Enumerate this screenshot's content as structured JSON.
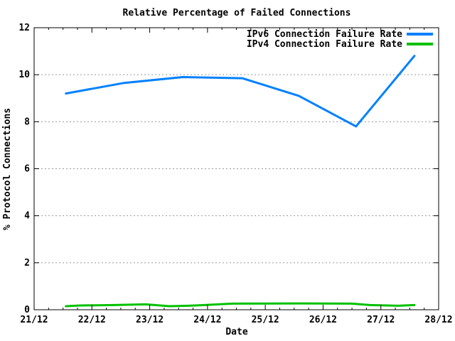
{
  "title": "Relative Percentage of Failed Connections",
  "chart_data": {
    "type": "line",
    "title": "Relative Percentage of Failed Connections",
    "xlabel": "Date",
    "ylabel": "% Protocol Connections",
    "x_axis": {
      "tick_labels": [
        "21/12",
        "22/12",
        "23/12",
        "24/12",
        "25/12",
        "26/12",
        "27/12",
        "28/12"
      ],
      "range_days": [
        0,
        7
      ],
      "minor_tick_interval_days": 0.25
    },
    "y_axis": {
      "ticks": [
        0,
        2,
        4,
        6,
        8,
        10,
        12
      ],
      "tick_labels": [
        "0",
        "2",
        "4",
        "6",
        "8",
        "10",
        "12"
      ],
      "range": [
        0,
        12
      ]
    },
    "grid": {
      "horizontal_dotted": true,
      "vertical": false,
      "color": "#999999"
    },
    "legend_position": "top-right-inside",
    "series": [
      {
        "name": "IPv6 Connection Failure Rate",
        "color": "#0080ff",
        "x_days": [
          0.55,
          1.56,
          2.57,
          3.6,
          4.58,
          5.57,
          6.58
        ],
        "y": [
          9.2,
          9.65,
          9.9,
          9.85,
          9.1,
          7.8,
          10.8
        ]
      },
      {
        "name": "IPv4 Connection Failure Rate",
        "color": "#00c000",
        "x_days": [
          0.55,
          0.8,
          1.38,
          1.93,
          2.34,
          2.67,
          2.95,
          3.19,
          3.44,
          4.58,
          5.5,
          5.81,
          6.3,
          6.58
        ],
        "y": [
          0.15,
          0.18,
          0.2,
          0.23,
          0.15,
          0.17,
          0.2,
          0.23,
          0.26,
          0.27,
          0.26,
          0.2,
          0.17,
          0.2
        ]
      }
    ]
  }
}
